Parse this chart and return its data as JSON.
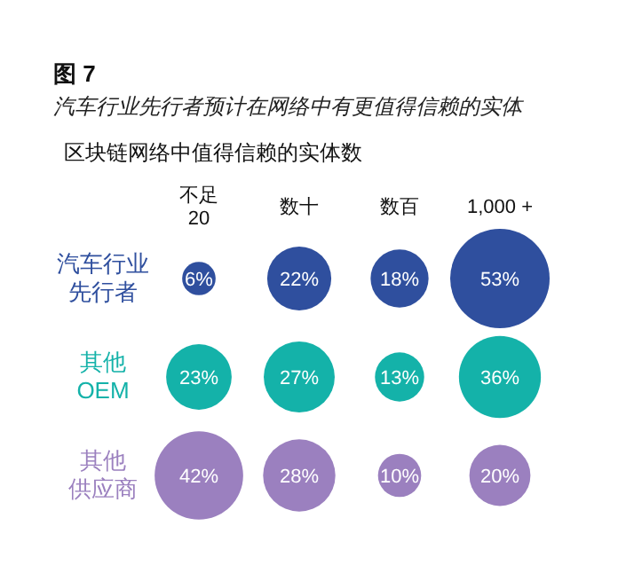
{
  "chart_data": {
    "type": "other",
    "title": "图 7",
    "subtitle": "汽车行业先行者预计在网络中有更值得信赖的实体",
    "xlabel": "区块链网络中值得信赖的实体数",
    "categories": [
      "不足\n20",
      "数十",
      "数百",
      "1,000 +"
    ],
    "series": [
      {
        "name": "汽车行业先行者",
        "color": "#2f4f9e",
        "values": [
          6,
          22,
          18,
          53
        ],
        "value_labels": [
          "6%",
          "22%",
          "18%",
          "53%"
        ]
      },
      {
        "name": "其他OEM",
        "color": "#14b2a9",
        "values": [
          23,
          27,
          13,
          36
        ],
        "value_labels": [
          "23%",
          "27%",
          "13%",
          "36%"
        ]
      },
      {
        "name": "其他供应商",
        "color": "#9b80bf",
        "values": [
          42,
          28,
          10,
          20
        ],
        "value_labels": [
          "42%",
          "28%",
          "10%",
          "20%"
        ]
      }
    ]
  }
}
